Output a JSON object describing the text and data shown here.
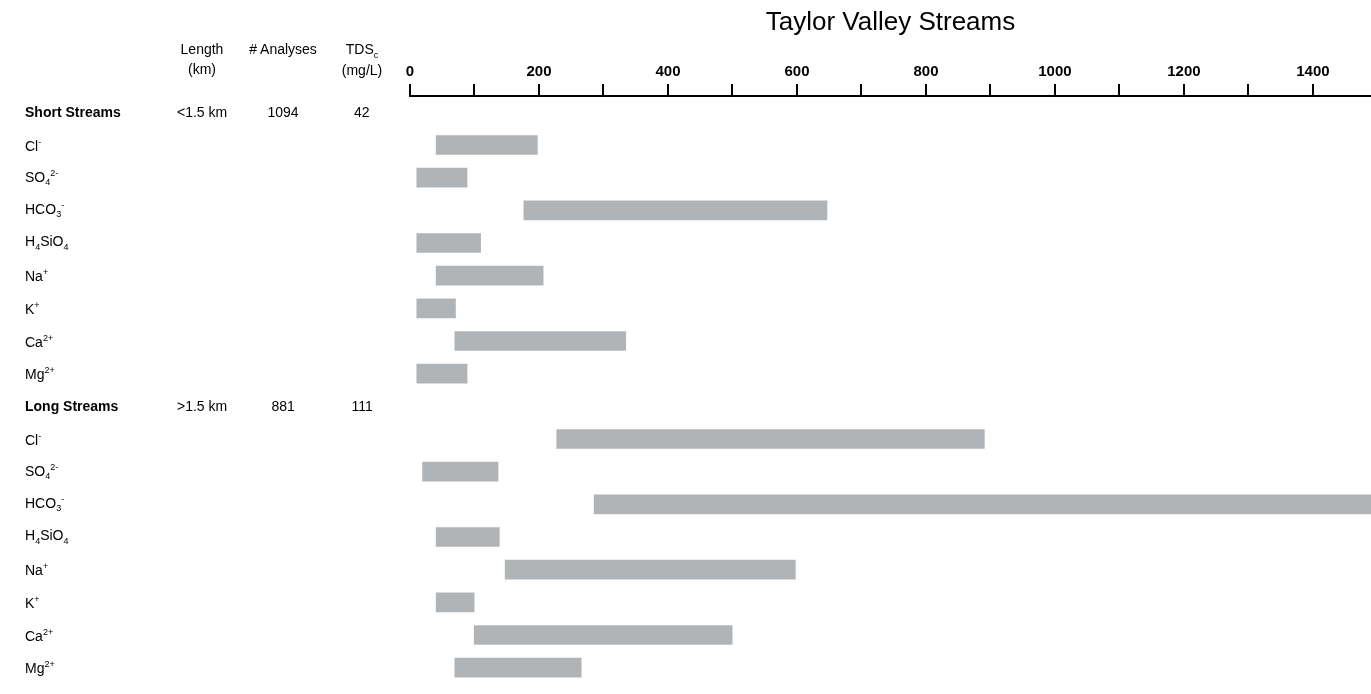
{
  "chart_data": {
    "type": "bar",
    "orientation": "horizontal",
    "title": "Taylor Valley Streams",
    "categories": [
      "Short Streams",
      "Cl$^{-}$",
      "SO$_{4}$$^{2-}$",
      "HCO$_{3}$$^{-}$",
      "H$_{4}$SiO$_{4}$",
      "Na$^{+}$",
      "K$^{+}$",
      "Ca$^{2+}$",
      "Mg$^{2+}$",
      "Long Streams",
      "Cl$^{-}$",
      "SO$_{4}$$^{2-}$",
      "HCO$_{3}$$^{-}$",
      "H$_{4}$SiO$_{4}$",
      "Na$^{+}$",
      "K$^{+}$",
      "Ca$^{2+}$",
      "Mg$^{2+}$"
    ],
    "series": [
      {
        "axis": "x2",
        "color": "#b1b4b6",
        "base": [
          null,
          40,
          10,
          176,
          10,
          40,
          10,
          69,
          10,
          null,
          227,
          19,
          285,
          40,
          147,
          40,
          99,
          69
        ],
        "values": [
          null,
          158,
          79,
          471,
          100,
          167,
          61,
          266,
          79,
          null,
          664,
          118,
          1205,
          99,
          451,
          60,
          401,
          197
        ]
      }
    ],
    "x2lim": [
      0,
      1490
    ],
    "x2ticks": [
      0,
      {
        "value": 100,
        "label": null
      },
      200,
      {
        "value": 300,
        "label": null
      },
      400,
      {
        "value": 500,
        "label": null
      },
      600,
      {
        "value": 700,
        "label": null
      },
      800,
      {
        "value": 900,
        "label": null
      },
      1000,
      {
        "value": 1100,
        "label": null
      },
      1200,
      {
        "value": 1300,
        "label": null
      },
      1400
    ],
    "annotations": [
      "Length (km)",
      "# Analyses",
      "TDS$_{c}$ (mg/L)",
      "<1.5 km",
      "1094",
      "42",
      ">1.5 km",
      "881",
      "111"
    ],
    "grid": false,
    "legend": false
  }
}
